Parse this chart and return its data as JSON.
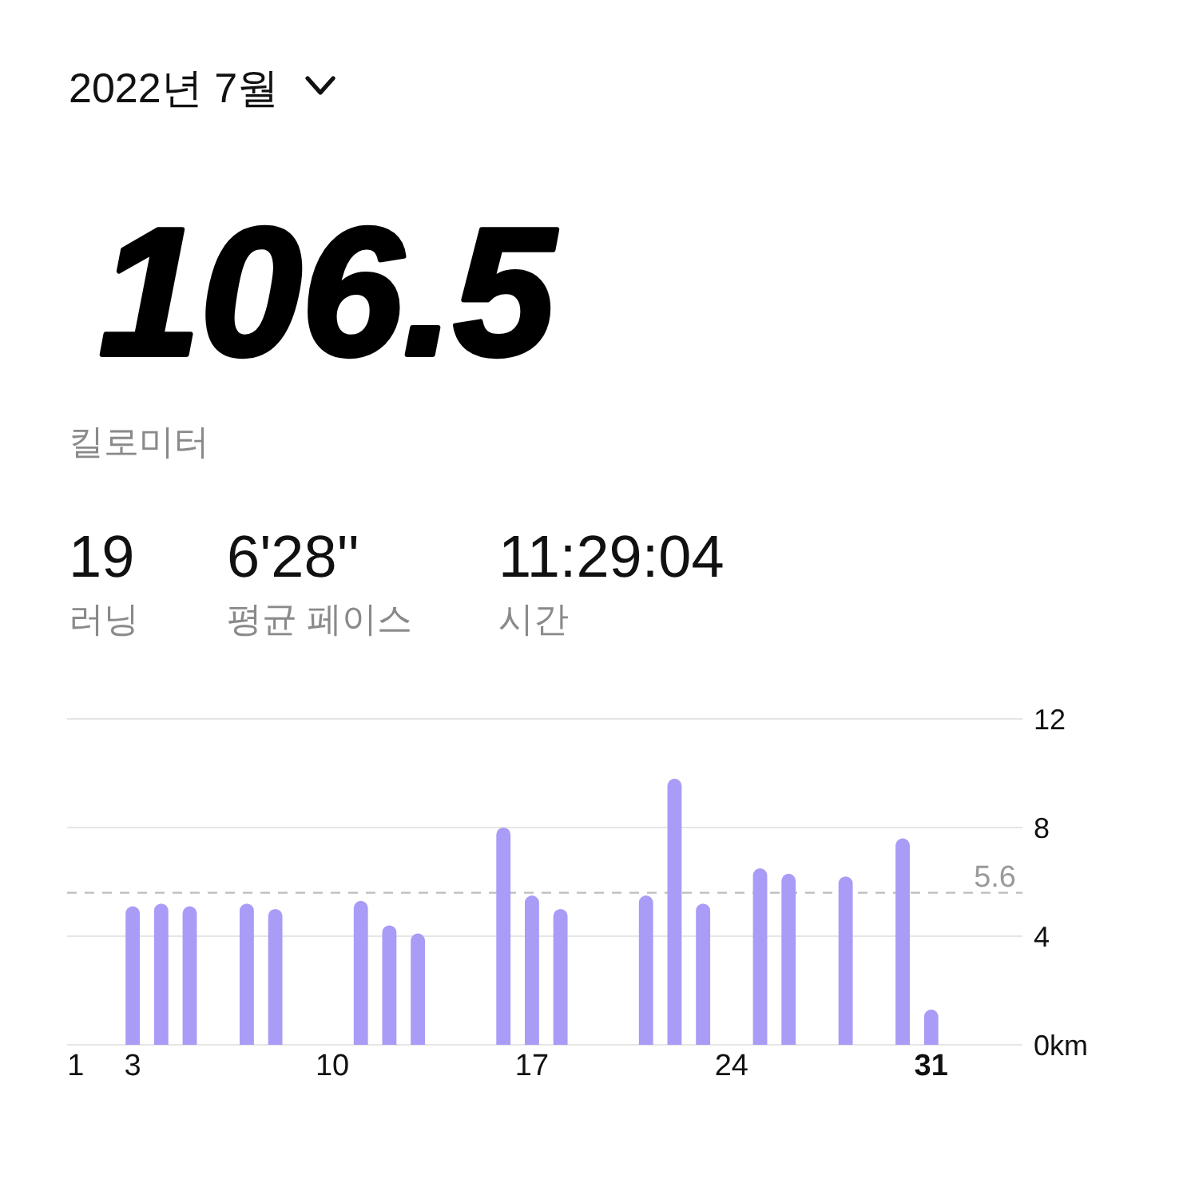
{
  "chart_data": {
    "type": "bar",
    "title": "2022년 7월",
    "x": [
      3,
      4,
      5,
      7,
      8,
      11,
      12,
      13,
      16,
      17,
      18,
      21,
      22,
      23,
      25,
      26,
      28,
      30,
      31
    ],
    "values": [
      5.1,
      5.2,
      5.1,
      5.2,
      5.0,
      5.3,
      4.4,
      4.1,
      8.0,
      5.5,
      5.0,
      5.5,
      9.8,
      5.2,
      6.5,
      6.3,
      6.2,
      7.6,
      1.3
    ],
    "color": "#a89cf6",
    "xlim": [
      0.7,
      34.2
    ],
    "xticks": [
      1,
      3,
      10,
      17,
      24,
      31
    ],
    "ylim": [
      0,
      12
    ],
    "yticks": [
      {
        "value": 0,
        "label": "0km"
      },
      4,
      8,
      12
    ],
    "grid": "y",
    "ref_lines": [
      {
        "axis": "y",
        "value": 5.6,
        "label": "5.6",
        "color": "#bdbdbd",
        "line_style": "dashed"
      }
    ],
    "annotations": [
      "106.5",
      "킬로미터",
      "19",
      "러닝",
      "6'28''",
      "평균 페이스",
      "11:29:04",
      "시간"
    ]
  }
}
